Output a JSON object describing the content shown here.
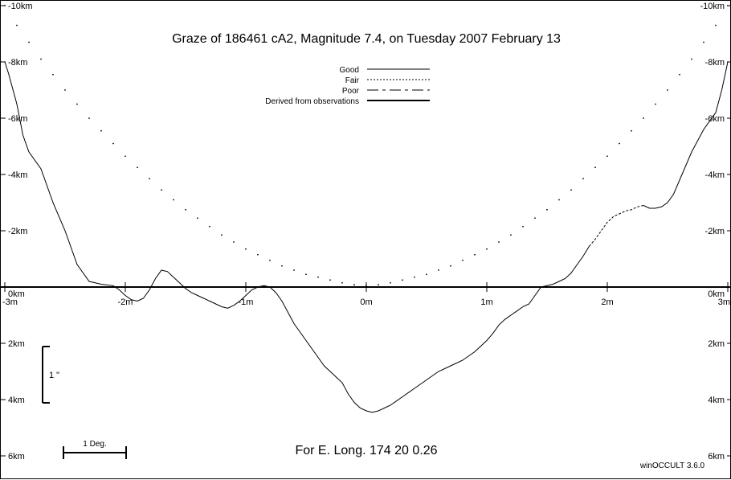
{
  "chart_data": {
    "type": "line",
    "title": "Graze of   186461  cA2,  Magnitude   7.4,  on Tuesday  2007  February  13",
    "footer": "For E. Long.  174 20  0.26",
    "credit": "winOCCULT 3.6.0",
    "xlabel": "",
    "ylabel": "",
    "xlim": [
      -3,
      3
    ],
    "ylim": [
      6,
      -10
    ],
    "x_ticks": [
      {
        "value": -3,
        "label": "-3m"
      },
      {
        "value": -2,
        "label": "-2m"
      },
      {
        "value": -1,
        "label": "-1m"
      },
      {
        "value": 0,
        "label": "0m"
      },
      {
        "value": 1,
        "label": "1m"
      },
      {
        "value": 2,
        "label": "2m"
      },
      {
        "value": 3,
        "label": "3m"
      }
    ],
    "y_ticks": [
      {
        "value": -10,
        "label": "-10km"
      },
      {
        "value": -8,
        "label": "-8km"
      },
      {
        "value": -6,
        "label": "-6km"
      },
      {
        "value": -4,
        "label": "-4km"
      },
      {
        "value": -2,
        "label": "-2km"
      },
      {
        "value": 0,
        "label": "0km"
      },
      {
        "value": 2,
        "label": "2km"
      },
      {
        "value": 4,
        "label": "4km"
      },
      {
        "value": 6,
        "label": "6km"
      }
    ],
    "legend": {
      "position": "top-center",
      "entries": [
        {
          "label": "Good",
          "style": "solid"
        },
        {
          "label": "Fair",
          "style": "dotted"
        },
        {
          "label": "Poor",
          "style": "dashed"
        },
        {
          "label": "Derived from observations",
          "style": "thick"
        }
      ]
    },
    "scale_bars": [
      {
        "label": "1 \"",
        "orientation": "vertical",
        "length_km": 2.0
      },
      {
        "label": "1 Deg.",
        "orientation": "horizontal",
        "length_min": 0.52
      }
    ],
    "series": [
      {
        "style": "solid",
        "x": [
          -3.0,
          -2.97,
          -2.9,
          -2.85,
          -2.8,
          -2.7,
          -2.6,
          -2.5,
          -2.4,
          -2.3,
          -2.2,
          -2.1,
          -2.05,
          -2.0,
          -1.95,
          -1.9,
          -1.85,
          -1.8,
          -1.75,
          -1.7,
          -1.65,
          -1.6,
          -1.55,
          -1.5,
          -1.45,
          -1.4,
          -1.35,
          -1.3,
          -1.25,
          -1.2,
          -1.15,
          -1.1,
          -1.05,
          -1.0,
          -0.95,
          -0.9,
          -0.85,
          -0.8,
          -0.75,
          -0.7,
          -0.65,
          -0.6,
          -0.55,
          -0.5,
          -0.45,
          -0.4,
          -0.35,
          -0.3,
          -0.25,
          -0.2,
          -0.15,
          -0.1,
          -0.05,
          0.0,
          0.05,
          0.1,
          0.15,
          0.2,
          0.25,
          0.3,
          0.4,
          0.5,
          0.6,
          0.7,
          0.8,
          0.9,
          1.0,
          1.05,
          1.1,
          1.15,
          1.2,
          1.25,
          1.3,
          1.35,
          1.4,
          1.45,
          1.5,
          1.55,
          1.6,
          1.65,
          1.7,
          1.75,
          1.8,
          1.85
        ],
        "y": [
          -8.0,
          -7.6,
          -6.5,
          -5.4,
          -4.8,
          -4.2,
          -3.0,
          -2.0,
          -0.8,
          -0.2,
          -0.1,
          -0.05,
          0.1,
          0.3,
          0.45,
          0.5,
          0.4,
          0.1,
          -0.3,
          -0.6,
          -0.55,
          -0.35,
          -0.15,
          0.05,
          0.2,
          0.3,
          0.4,
          0.5,
          0.6,
          0.7,
          0.75,
          0.65,
          0.5,
          0.3,
          0.1,
          0.0,
          -0.05,
          0.0,
          0.2,
          0.5,
          0.9,
          1.3,
          1.6,
          1.9,
          2.2,
          2.5,
          2.8,
          3.0,
          3.2,
          3.4,
          3.8,
          4.1,
          4.3,
          4.4,
          4.45,
          4.4,
          4.3,
          4.2,
          4.05,
          3.9,
          3.6,
          3.3,
          3.0,
          2.8,
          2.6,
          2.3,
          1.9,
          1.65,
          1.35,
          1.15,
          1.0,
          0.85,
          0.7,
          0.6,
          0.3,
          0.0,
          -0.05,
          -0.1,
          -0.2,
          -0.3,
          -0.5,
          -0.8,
          -1.1,
          -1.45
        ]
      },
      {
        "style": "dashed",
        "x": [
          1.85,
          1.9,
          1.95,
          2.0,
          2.05,
          2.1,
          2.15,
          2.2,
          2.25,
          2.3
        ],
        "y": [
          -1.45,
          -1.7,
          -2.0,
          -2.3,
          -2.5,
          -2.6,
          -2.7,
          -2.75,
          -2.85,
          -2.9
        ]
      },
      {
        "style": "solid",
        "x": [
          2.3,
          2.35,
          2.4,
          2.45,
          2.5,
          2.55,
          2.6,
          2.7,
          2.8,
          2.9,
          2.95,
          3.0
        ],
        "y": [
          -2.9,
          -2.8,
          -2.8,
          -2.85,
          -3.0,
          -3.3,
          -3.8,
          -4.8,
          -5.6,
          -6.2,
          -7.0,
          -8.0
        ]
      },
      {
        "style": "dotted",
        "x": [
          -3.0,
          -2.9,
          -2.8,
          -2.7,
          -2.6,
          -2.5,
          -2.4,
          -2.3,
          -2.2,
          -2.1,
          -2.0,
          -1.9,
          -1.8,
          -1.7,
          -1.6,
          -1.5,
          -1.4,
          -1.3,
          -1.2,
          -1.1,
          -1.0,
          -0.9,
          -0.8,
          -0.7,
          -0.6,
          -0.5,
          -0.4,
          -0.3,
          -0.2,
          -0.1,
          0.0,
          0.1,
          0.2,
          0.3,
          0.4,
          0.5,
          0.6,
          0.7,
          0.8,
          0.9,
          1.0,
          1.1,
          1.2,
          1.3,
          1.4,
          1.5,
          1.6,
          1.7,
          1.8,
          1.9,
          2.0,
          2.1,
          2.2,
          2.3,
          2.4,
          2.5,
          2.6,
          2.7,
          2.8,
          2.9,
          3.0
        ],
        "y": [
          -10.0,
          -9.3,
          -8.7,
          -8.1,
          -7.55,
          -7.0,
          -6.5,
          -6.0,
          -5.55,
          -5.1,
          -4.65,
          -4.25,
          -3.85,
          -3.45,
          -3.1,
          -2.75,
          -2.45,
          -2.15,
          -1.85,
          -1.6,
          -1.35,
          -1.15,
          -0.95,
          -0.75,
          -0.6,
          -0.45,
          -0.35,
          -0.25,
          -0.15,
          -0.08,
          -0.05,
          -0.08,
          -0.15,
          -0.25,
          -0.35,
          -0.45,
          -0.6,
          -0.75,
          -0.95,
          -1.15,
          -1.35,
          -1.6,
          -1.85,
          -2.15,
          -2.45,
          -2.75,
          -3.1,
          -3.45,
          -3.85,
          -4.25,
          -4.65,
          -5.1,
          -5.55,
          -6.0,
          -6.5,
          -7.0,
          -7.55,
          -8.1,
          -8.7,
          -9.3,
          -10.0
        ]
      }
    ]
  }
}
